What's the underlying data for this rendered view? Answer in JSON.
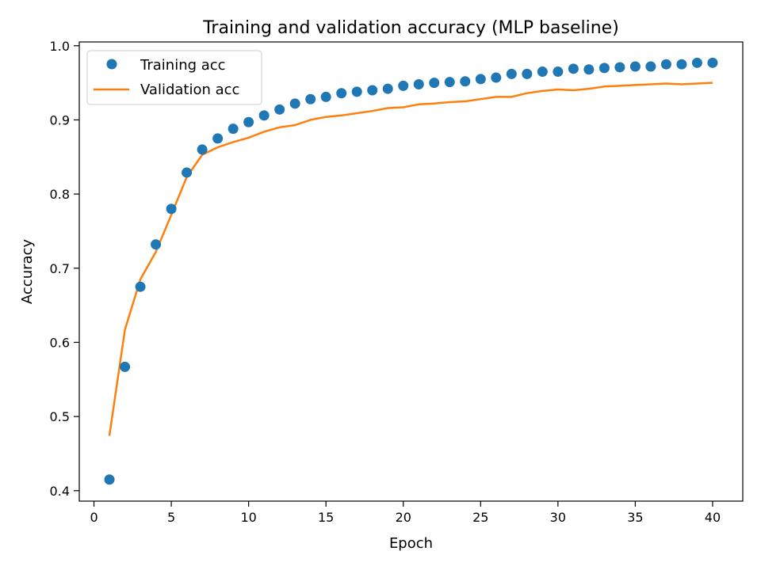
{
  "chart_data": {
    "type": "scatter",
    "title": "Training and validation accuracy (MLP baseline)",
    "xlabel": "Epoch",
    "ylabel": "Accuracy",
    "xlim": [
      -0.95,
      41.95
    ],
    "ylim": [
      0.3859,
      1.0051
    ],
    "xticks": [
      0,
      5,
      10,
      15,
      20,
      25,
      30,
      35,
      40
    ],
    "yticks": [
      0.4,
      0.5,
      0.6,
      0.7,
      0.8,
      0.9,
      1.0
    ],
    "xtick_labels": [
      "0",
      "5",
      "10",
      "15",
      "20",
      "25",
      "30",
      "35",
      "40"
    ],
    "ytick_labels": [
      "0.4",
      "0.5",
      "0.6",
      "0.7",
      "0.8",
      "0.9",
      "1.0"
    ],
    "grid": false,
    "legend_position": "top-left",
    "x": [
      1,
      2,
      3,
      4,
      5,
      6,
      7,
      8,
      9,
      10,
      11,
      12,
      13,
      14,
      15,
      16,
      17,
      18,
      19,
      20,
      21,
      22,
      23,
      24,
      25,
      26,
      27,
      28,
      29,
      30,
      31,
      32,
      33,
      34,
      35,
      36,
      37,
      38,
      39,
      40
    ],
    "series": [
      {
        "name": "Training acc",
        "style": "markers",
        "color": "#1f77b4",
        "values": [
          0.415,
          0.567,
          0.675,
          0.732,
          0.78,
          0.829,
          0.86,
          0.875,
          0.888,
          0.897,
          0.906,
          0.914,
          0.922,
          0.928,
          0.931,
          0.936,
          0.938,
          0.94,
          0.942,
          0.946,
          0.948,
          0.95,
          0.951,
          0.952,
          0.955,
          0.957,
          0.962,
          0.962,
          0.965,
          0.965,
          0.969,
          0.968,
          0.97,
          0.971,
          0.972,
          0.972,
          0.975,
          0.975,
          0.977,
          0.977
        ]
      },
      {
        "name": "Validation acc",
        "style": "line",
        "color": "#ff7f0e",
        "values": [
          0.474,
          0.617,
          0.685,
          0.722,
          0.772,
          0.823,
          0.853,
          0.863,
          0.87,
          0.876,
          0.884,
          0.89,
          0.893,
          0.9,
          0.904,
          0.906,
          0.909,
          0.912,
          0.916,
          0.917,
          0.921,
          0.922,
          0.924,
          0.925,
          0.928,
          0.931,
          0.931,
          0.936,
          0.939,
          0.941,
          0.94,
          0.942,
          0.945,
          0.946,
          0.947,
          0.948,
          0.949,
          0.948,
          0.949,
          0.95
        ]
      }
    ]
  }
}
